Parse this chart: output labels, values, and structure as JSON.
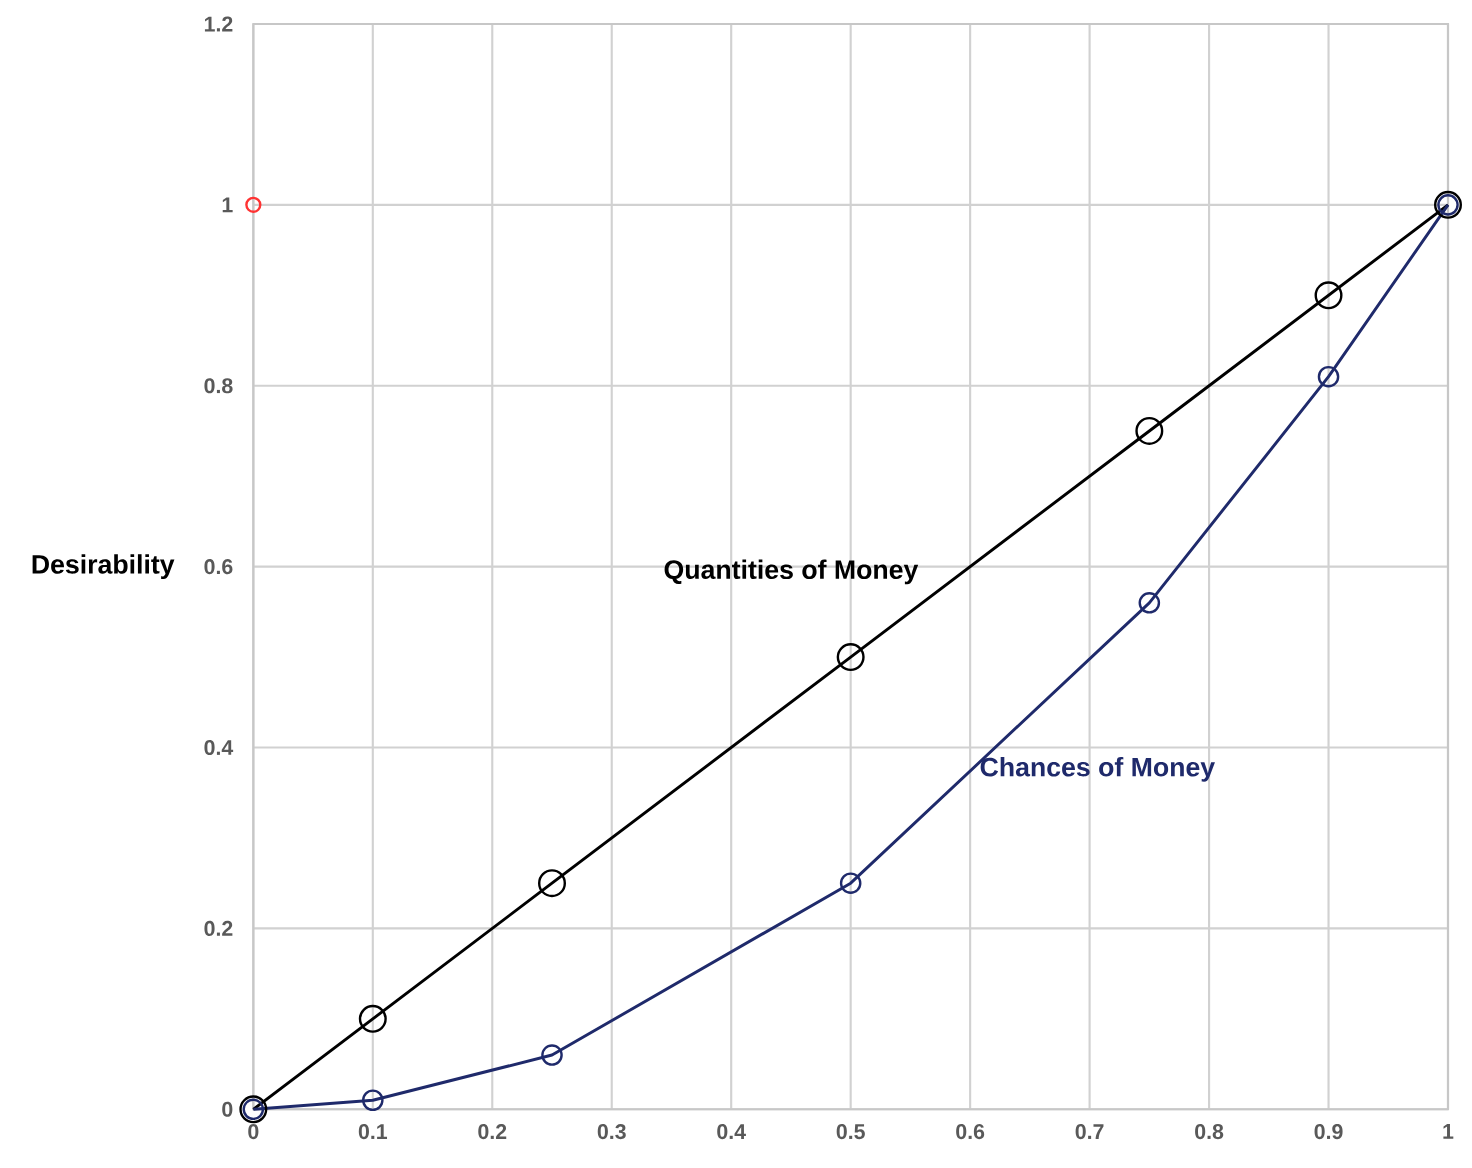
{
  "chart_data": {
    "type": "line",
    "ylabel": "Desirability",
    "x": [
      0,
      0.1,
      0.25,
      0.5,
      0.75,
      0.9,
      1
    ],
    "series": [
      {
        "name": "Quantities of Money",
        "color": "#000000",
        "values": [
          0,
          0.1,
          0.25,
          0.5,
          0.75,
          0.9,
          1
        ]
      },
      {
        "name": "Chances of Money",
        "color": "#1f2a6b",
        "values": [
          0,
          0.01,
          0.06,
          0.25,
          0.56,
          0.81,
          1
        ]
      },
      {
        "type": "scatter",
        "color": "#ff3333",
        "x": [
          0
        ],
        "values": [
          1
        ]
      }
    ],
    "xlim": [
      0,
      1
    ],
    "ylim": [
      0,
      1.2
    ],
    "xticks": [
      0,
      0.1,
      0.2,
      0.3,
      0.4,
      0.5,
      0.6,
      0.7,
      0.8,
      0.9,
      1
    ],
    "yticks": [
      0,
      0.2,
      0.4,
      0.6,
      0.8,
      1,
      1.2
    ],
    "grid": true,
    "marker": "circle",
    "line_style": "solid"
  }
}
